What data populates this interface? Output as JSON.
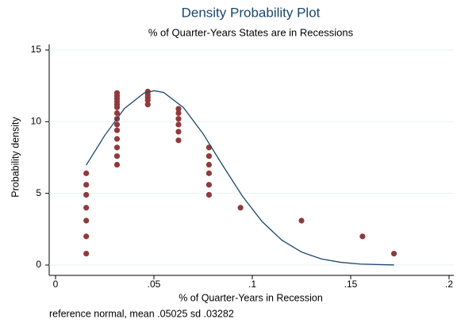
{
  "chart_data": {
    "type": "scatter",
    "title": "Density Probability Plot",
    "subtitle": "% of Quarter-Years States are in Recessions",
    "xlabel": "% of Quarter-Years in Recession",
    "ylabel": "Probability density",
    "note": "reference normal, mean .05025 sd .03282",
    "xlim": [
      0,
      0.2
    ],
    "xticks": [
      0,
      {
        "value": 0.05,
        "label": ".05"
      },
      {
        "value": 0.1,
        "label": ".1"
      },
      {
        "value": 0.15,
        "label": ".15"
      },
      {
        "value": 0.2,
        "label": ".2"
      }
    ],
    "ylim": [
      0,
      15
    ],
    "yticks": [
      0,
      5,
      10,
      15
    ],
    "grid": true,
    "series": [
      {
        "type": "scatter",
        "color": "#903a3c",
        "x": [
          0.0156,
          0.0156,
          0.0156,
          0.0156,
          0.0156,
          0.0156,
          0.0156,
          0.03125,
          0.03125,
          0.03125,
          0.03125,
          0.03125,
          0.03125,
          0.03125,
          0.03125,
          0.03125,
          0.03125,
          0.03125,
          0.03125,
          0.03125,
          0.03125,
          0.046875,
          0.046875,
          0.046875,
          0.046875,
          0.046875,
          0.0625,
          0.0625,
          0.0625,
          0.0625,
          0.0625,
          0.0625,
          0.078,
          0.078,
          0.078,
          0.078,
          0.078,
          0.078,
          0.094,
          0.125,
          0.156,
          0.172
        ],
        "values": [
          6.4,
          5.6,
          4.9,
          4.0,
          3.1,
          2.0,
          0.8,
          12.0,
          11.8,
          11.6,
          11.4,
          11.2,
          11.0,
          10.6,
          10.2,
          9.8,
          9.4,
          8.8,
          8.2,
          7.6,
          7.0,
          12.1,
          11.9,
          11.7,
          11.5,
          11.2,
          10.9,
          10.6,
          10.2,
          9.8,
          9.3,
          8.7,
          8.2,
          7.6,
          7.0,
          6.4,
          5.6,
          4.9,
          4.0,
          3.1,
          2.0,
          0.8
        ]
      },
      {
        "type": "line",
        "color": "#1a476f",
        "x": [
          0.0156,
          0.025,
          0.035,
          0.045,
          0.05025,
          0.055,
          0.065,
          0.075,
          0.085,
          0.095,
          0.105,
          0.115,
          0.125,
          0.135,
          0.145,
          0.155,
          0.165,
          0.172
        ],
        "values": [
          6.97,
          9.04,
          10.92,
          12.0,
          12.16,
          12.03,
          10.99,
          9.15,
          6.94,
          4.8,
          3.03,
          1.74,
          0.91,
          0.43,
          0.19,
          0.07,
          0.03,
          0.01
        ]
      }
    ]
  }
}
